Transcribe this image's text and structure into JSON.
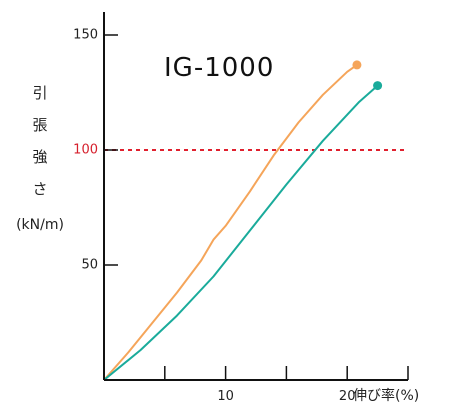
{
  "chart_data": {
    "type": "line",
    "title": "IG-1000",
    "ylabel_chars": [
      "引",
      "張",
      "強",
      "さ"
    ],
    "ylabel_unit": "(kN/m)",
    "xlabel": "伸び率(%)",
    "xlim": [
      0,
      25
    ],
    "ylim": [
      0,
      160
    ],
    "x_ticks": [
      5,
      10,
      15,
      20,
      25
    ],
    "x_tick_labels": [
      "10",
      "20"
    ],
    "x_tick_label_values": [
      10,
      20
    ],
    "y_ticks": [
      50,
      100,
      150
    ],
    "y_tick_labels": [
      "50",
      "150"
    ],
    "y_tick_label_values": [
      50,
      150
    ],
    "reference_line": {
      "value": 100,
      "label": "100",
      "color": "#e0202e"
    },
    "series": [
      {
        "color": "#f5a55a",
        "marker_end": true,
        "x": [
          0,
          2,
          4,
          6,
          8,
          9,
          10,
          12,
          14,
          16,
          18,
          20,
          20.8
        ],
        "y": [
          0,
          12,
          25,
          38,
          52,
          61,
          67,
          82,
          98,
          112,
          124,
          134,
          137
        ]
      },
      {
        "color": "#1aab9b",
        "marker_end": true,
        "x": [
          0,
          3,
          6,
          9,
          12,
          15,
          18,
          21,
          22.5
        ],
        "y": [
          0,
          13,
          28,
          45,
          65,
          85,
          104,
          121,
          128
        ]
      }
    ]
  }
}
